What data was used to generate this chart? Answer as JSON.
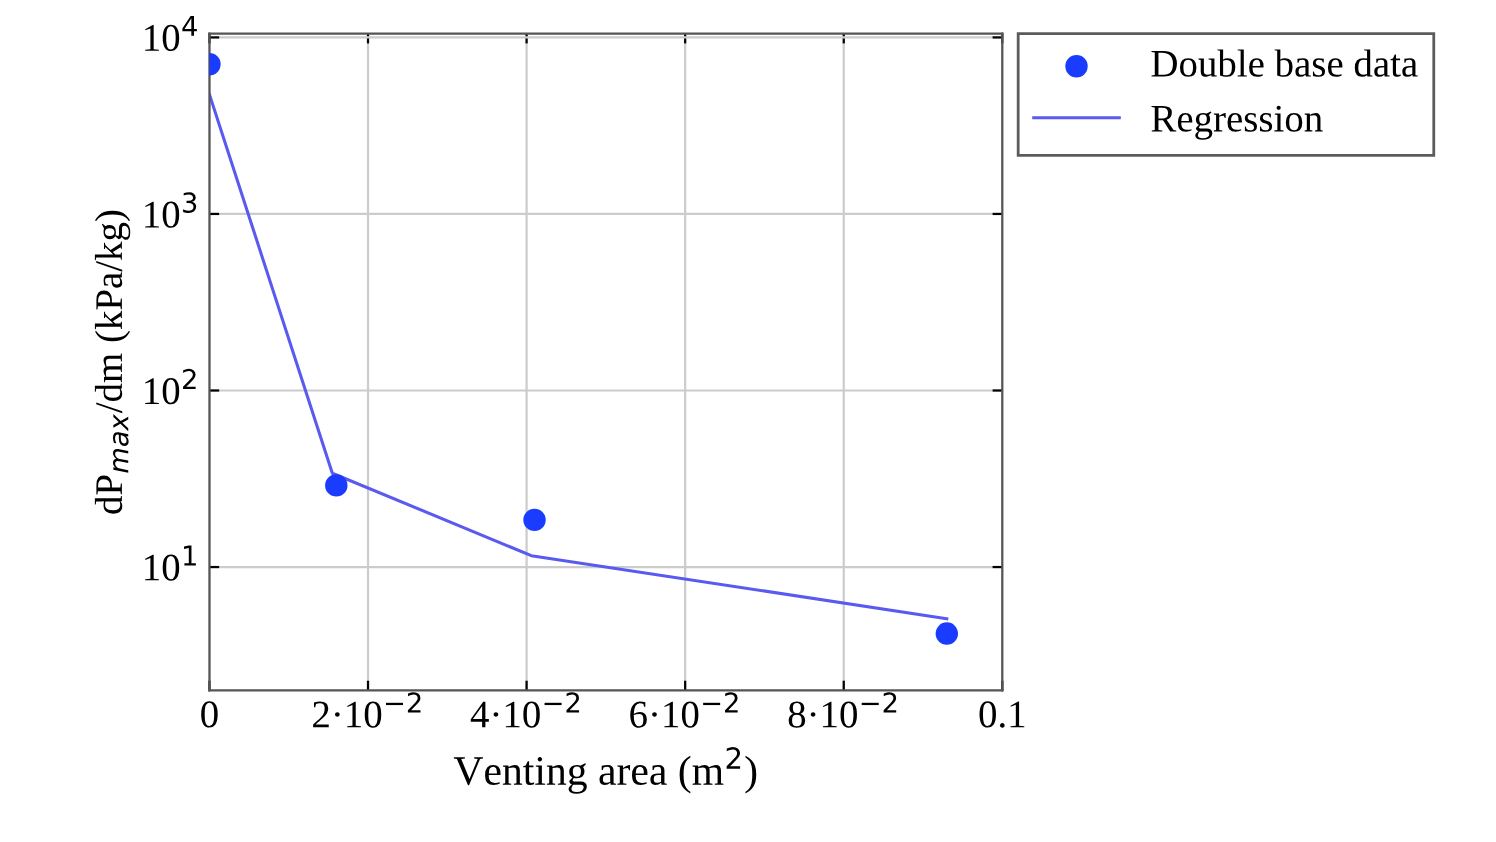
{
  "chart_data": {
    "type": "scatter",
    "xlabel": "Venting area (m$^{2}$)",
    "ylabel": "dP$_{max}$/dm (kPa/kg)",
    "xlim": [
      0,
      0.1
    ],
    "xticks": [
      0,
      {
        "value": 0.02,
        "label": "2·10$^{−2}$"
      },
      {
        "value": 0.04,
        "label": "4·10$^{−2}$"
      },
      {
        "value": 0.06,
        "label": "6·10$^{−2}$"
      },
      {
        "value": 0.08,
        "label": "8·10$^{−2}$"
      },
      0.1
    ],
    "ylim": [
      2,
      10500
    ],
    "yticks": [
      {
        "value": 10,
        "label": "10$^{1}$"
      },
      {
        "value": 100,
        "label": "10$^{2}$"
      },
      {
        "value": 1000,
        "label": "10$^{3}$"
      },
      {
        "value": 10000,
        "label": "10$^{4}$"
      }
    ],
    "log": "y",
    "grid": true,
    "legend": "top right",
    "series": [
      {
        "name": "Double base data",
        "marker": "circle",
        "color": "#1a3cff",
        "x": [
          0,
          0.016,
          0.041,
          0.093
        ],
        "values": [
          7050,
          29,
          18.5,
          4.2
        ]
      },
      {
        "name": "Regression",
        "type": "line",
        "marker": "none",
        "color": "#5a5af0",
        "x": [
          0,
          0.0155,
          0.0406,
          0.093
        ],
        "values": [
          4750,
          34,
          11.6,
          5.1
        ]
      }
    ]
  }
}
